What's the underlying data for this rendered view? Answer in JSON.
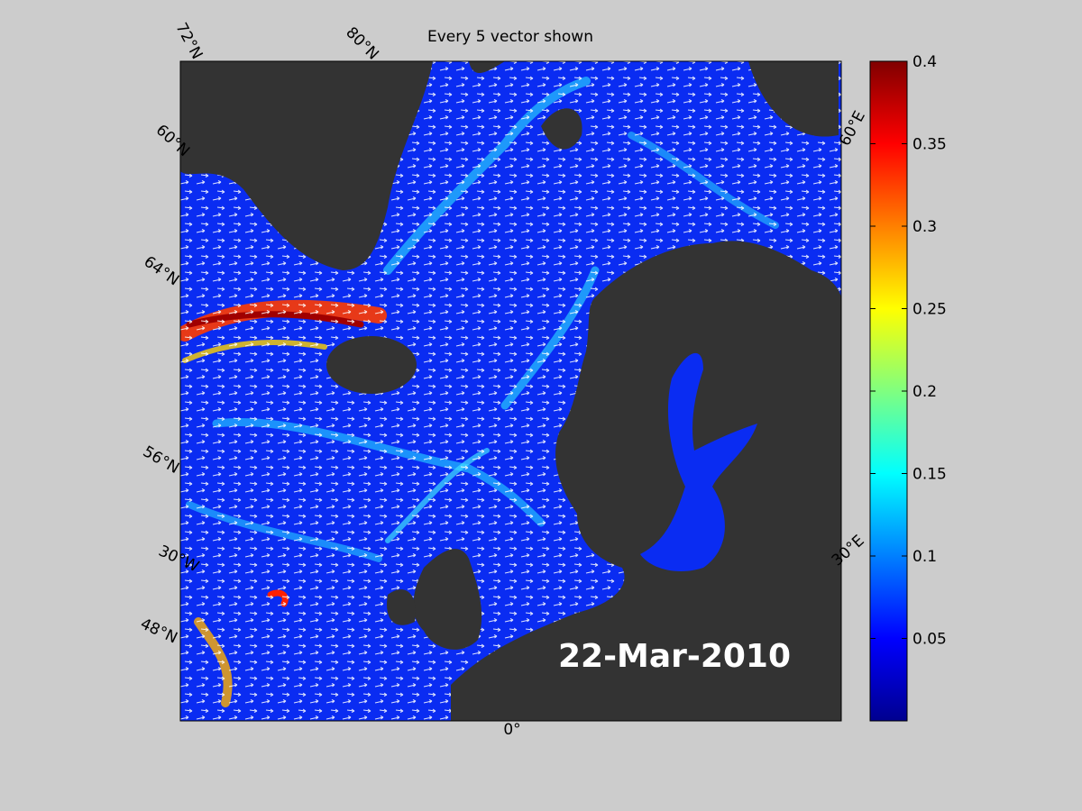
{
  "title": "Every 5 vector shown",
  "date": "22-Mar-2010",
  "grid_labels": [
    "72°N",
    "80°N",
    "60°N",
    "64°N",
    "56°N",
    "30°W",
    "48°N",
    "0°",
    "30°E",
    "60°E"
  ],
  "colorbar": {
    "lim": [
      0,
      0.4
    ],
    "ticks": [
      0.05,
      0.1,
      0.15,
      0.2,
      0.25,
      0.3,
      0.35,
      0.4
    ]
  }
}
